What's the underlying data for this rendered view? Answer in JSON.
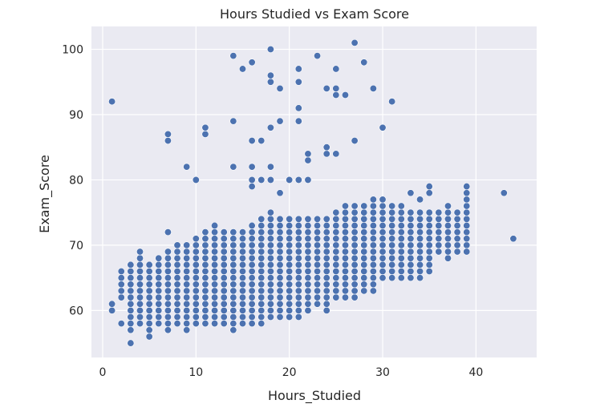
{
  "chart_data": {
    "type": "scatter",
    "title": "Hours Studied vs Exam Score",
    "xlabel": "Hours_Studied",
    "ylabel": "Exam_Score",
    "xlim": [
      -1.2,
      46.5
    ],
    "ylim": [
      52.8,
      103.5
    ],
    "xticks": [
      0,
      10,
      20,
      30,
      40
    ],
    "yticks": [
      60,
      70,
      80,
      90,
      100
    ],
    "grid": true,
    "background_color": "#eaeaf2",
    "grid_color": "#ffffff",
    "marker_color": "#4c72b0",
    "dense_band": {
      "description_note": "",
      "rows": [
        [
          1,
          60,
          61
        ],
        [
          2,
          62,
          66
        ],
        [
          3,
          57,
          67
        ],
        [
          4,
          58,
          69
        ],
        [
          5,
          56,
          67
        ],
        [
          6,
          58,
          68
        ],
        [
          7,
          57,
          69
        ],
        [
          8,
          58,
          70
        ],
        [
          9,
          57,
          70
        ],
        [
          10,
          58,
          71
        ],
        [
          11,
          58,
          72
        ],
        [
          12,
          58,
          73
        ],
        [
          13,
          58,
          72
        ],
        [
          14,
          57,
          72
        ],
        [
          15,
          58,
          72
        ],
        [
          16,
          58,
          73
        ],
        [
          17,
          58,
          74
        ],
        [
          18,
          59,
          75
        ],
        [
          19,
          59,
          74
        ],
        [
          20,
          59,
          74
        ],
        [
          21,
          59,
          74
        ],
        [
          22,
          60,
          74
        ],
        [
          23,
          61,
          74
        ],
        [
          24,
          60,
          74
        ],
        [
          25,
          62,
          75
        ],
        [
          26,
          62,
          76
        ],
        [
          27,
          62,
          76
        ],
        [
          28,
          63,
          76
        ],
        [
          29,
          63,
          77
        ],
        [
          30,
          65,
          77
        ],
        [
          31,
          65,
          76
        ],
        [
          32,
          65,
          76
        ],
        [
          33,
          65,
          75
        ],
        [
          34,
          65,
          75
        ],
        [
          35,
          66,
          75
        ],
        [
          36,
          69,
          75
        ],
        [
          37,
          68,
          76
        ],
        [
          38,
          69,
          75
        ],
        [
          39,
          70,
          75
        ]
      ]
    },
    "points": [
      [
        1,
        92
      ],
      [
        3,
        55
      ],
      [
        3,
        57
      ],
      [
        3,
        58
      ],
      [
        2,
        58
      ],
      [
        4,
        59
      ],
      [
        5,
        56
      ],
      [
        7,
        72
      ],
      [
        7,
        86
      ],
      [
        7,
        87
      ],
      [
        9,
        82
      ],
      [
        10,
        80
      ],
      [
        11,
        87
      ],
      [
        11,
        88
      ],
      [
        14,
        82
      ],
      [
        14,
        89
      ],
      [
        14,
        99
      ],
      [
        15,
        97
      ],
      [
        16,
        79
      ],
      [
        16,
        80
      ],
      [
        16,
        82
      ],
      [
        16,
        86
      ],
      [
        16,
        98
      ],
      [
        17,
        80
      ],
      [
        17,
        86
      ],
      [
        18,
        80
      ],
      [
        18,
        82
      ],
      [
        18,
        88
      ],
      [
        18,
        95
      ],
      [
        18,
        96
      ],
      [
        18,
        100
      ],
      [
        19,
        78
      ],
      [
        19,
        89
      ],
      [
        19,
        94
      ],
      [
        20,
        80
      ],
      [
        21,
        80
      ],
      [
        21,
        89
      ],
      [
        21,
        91
      ],
      [
        21,
        95
      ],
      [
        21,
        97
      ],
      [
        22,
        80
      ],
      [
        22,
        83
      ],
      [
        22,
        84
      ],
      [
        23,
        99
      ],
      [
        24,
        84
      ],
      [
        24,
        85
      ],
      [
        24,
        94
      ],
      [
        25,
        84
      ],
      [
        25,
        93
      ],
      [
        25,
        94
      ],
      [
        25,
        97
      ],
      [
        26,
        93
      ],
      [
        27,
        86
      ],
      [
        27,
        101
      ],
      [
        28,
        98
      ],
      [
        29,
        94
      ],
      [
        30,
        88
      ],
      [
        31,
        92
      ],
      [
        33,
        78
      ],
      [
        34,
        77
      ],
      [
        35,
        78
      ],
      [
        35,
        79
      ],
      [
        36,
        73
      ],
      [
        36,
        74
      ],
      [
        37,
        69
      ],
      [
        37,
        72
      ],
      [
        37,
        73
      ],
      [
        38,
        72
      ],
      [
        38,
        73
      ],
      [
        38,
        74
      ],
      [
        39,
        69
      ],
      [
        39,
        71
      ],
      [
        39,
        73
      ],
      [
        39,
        76
      ],
      [
        39,
        77
      ],
      [
        39,
        78
      ],
      [
        39,
        79
      ],
      [
        43,
        78
      ],
      [
        44,
        71
      ]
    ]
  }
}
